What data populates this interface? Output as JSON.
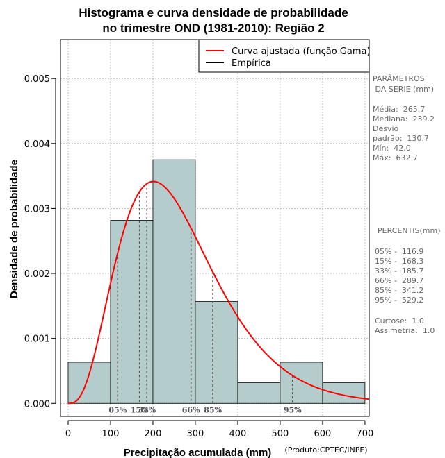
{
  "chart_data": {
    "type": "bar",
    "title_line1": "Histograma e curva densidade de probabilidade",
    "title_line2": "no trimestre OND (1981-2010): Região 2",
    "xlabel": "Precipitação acumulada (mm)",
    "ylabel": "Densidade de probabilidade",
    "credit": "(Produto:CPTEC/INPE)",
    "xlim": [
      -18,
      710
    ],
    "ylim": [
      -0.0002,
      0.0056
    ],
    "x_ticks": [
      0,
      100,
      200,
      300,
      400,
      500,
      600,
      700
    ],
    "x_tick_labels": [
      "0",
      "100",
      "200",
      "300",
      "400",
      "500",
      "600",
      "700"
    ],
    "y_ticks": [
      0.0,
      0.001,
      0.002,
      0.003,
      0.004,
      0.005
    ],
    "y_tick_labels": [
      "0.000",
      "0.001",
      "0.002",
      "0.003",
      "0.004",
      "0.005"
    ],
    "grid": true,
    "bins": [
      {
        "x0": 0,
        "x1": 100,
        "density": 0.000633
      },
      {
        "x0": 100,
        "x1": 200,
        "density": 0.002817
      },
      {
        "x0": 200,
        "x1": 300,
        "density": 0.00375
      },
      {
        "x0": 300,
        "x1": 400,
        "density": 0.001567
      },
      {
        "x0": 400,
        "x1": 500,
        "density": 0.000317
      },
      {
        "x0": 500,
        "x1": 600,
        "density": 0.000633
      },
      {
        "x0": 600,
        "x1": 700,
        "density": 0.000317
      }
    ],
    "bar_color": "#b5cccc",
    "curve": {
      "name": "Curva ajustada (função Gama)",
      "color": "#ff0000",
      "shape": 4.13,
      "scale": 64.3,
      "x_max": 710
    },
    "legend": [
      {
        "label": "Curva ajustada (função Gama)",
        "color": "#ff0000"
      },
      {
        "label": "Empírica",
        "color": "#000000"
      }
    ],
    "legend_position": "top-right",
    "percentile_lines": [
      {
        "value": 116.9,
        "label": "05%"
      },
      {
        "value": 168.3,
        "label": "15%"
      },
      {
        "value": 185.7,
        "label": "33%"
      },
      {
        "value": 289.7,
        "label": "66%"
      },
      {
        "value": 341.2,
        "label": "85%"
      },
      {
        "value": 529.2,
        "label": "95%"
      }
    ]
  },
  "params": {
    "title1": "PARÂMETROS",
    "title2": " DA SÉRIE (mm)",
    "lines": [
      "Média:  265.7",
      "Mediana:  239.2",
      "Desvio",
      "padrão:  130.7",
      "Mín:  42.0",
      "Máx:  632.7"
    ]
  },
  "percentis": {
    "title": "PERCENTIS(mm)",
    "lines": [
      "05% -  116.9",
      "15% -  168.3",
      "33% -  185.7",
      "66% -  289.7",
      "85% -  341.2",
      "95% -  529.2"
    ]
  },
  "stats": {
    "lines": [
      "Curtose:  1.0",
      "Assimetria:  1.0"
    ]
  }
}
